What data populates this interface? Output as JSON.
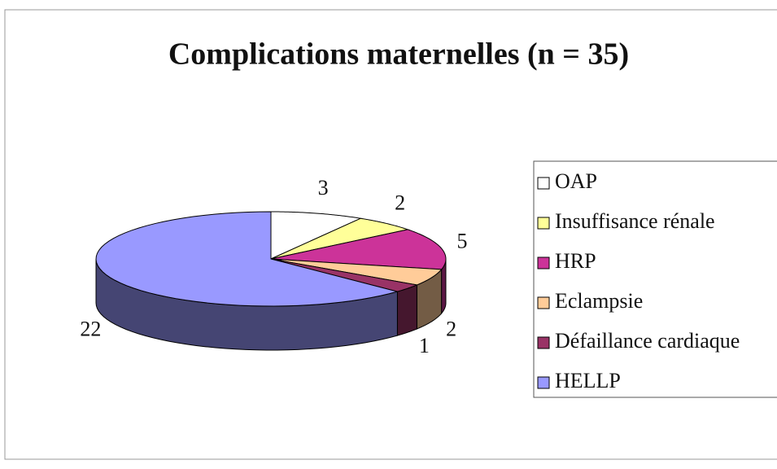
{
  "chart_data": {
    "type": "pie3d",
    "title": "Complications maternelles (n = 35)",
    "categories": [
      "OAP",
      "Insuffisance rénale",
      "HRP",
      "Eclampsie",
      "Défaillance cardiaque",
      "HELLP"
    ],
    "values": [
      3,
      2,
      5,
      2,
      1,
      22
    ],
    "colors": [
      "#ffffff",
      "#ffff99",
      "#cc3399",
      "#ffcc99",
      "#993366",
      "#9999ff"
    ],
    "legend": "right"
  }
}
